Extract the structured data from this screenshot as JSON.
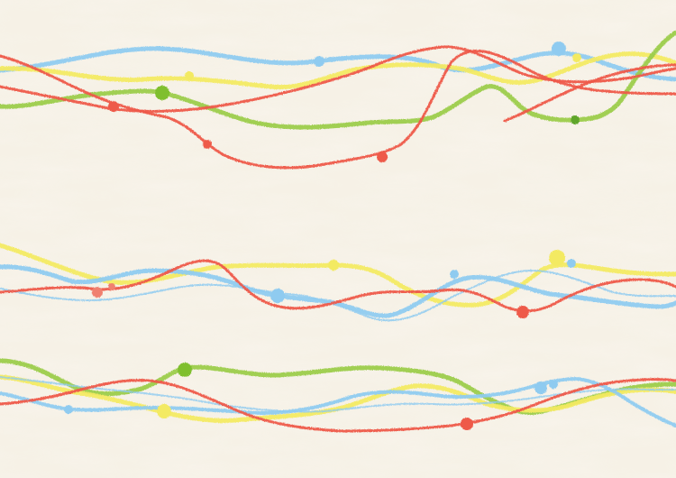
{
  "artwork": {
    "paper_color": "#f6f1e6",
    "paper_fiber_color": "#ffffff",
    "palette": {
      "red": "#ee5a4a",
      "blue": "#8fcbf0",
      "yellow": "#f3ea62",
      "green": "#9ccc4c"
    }
  }
}
